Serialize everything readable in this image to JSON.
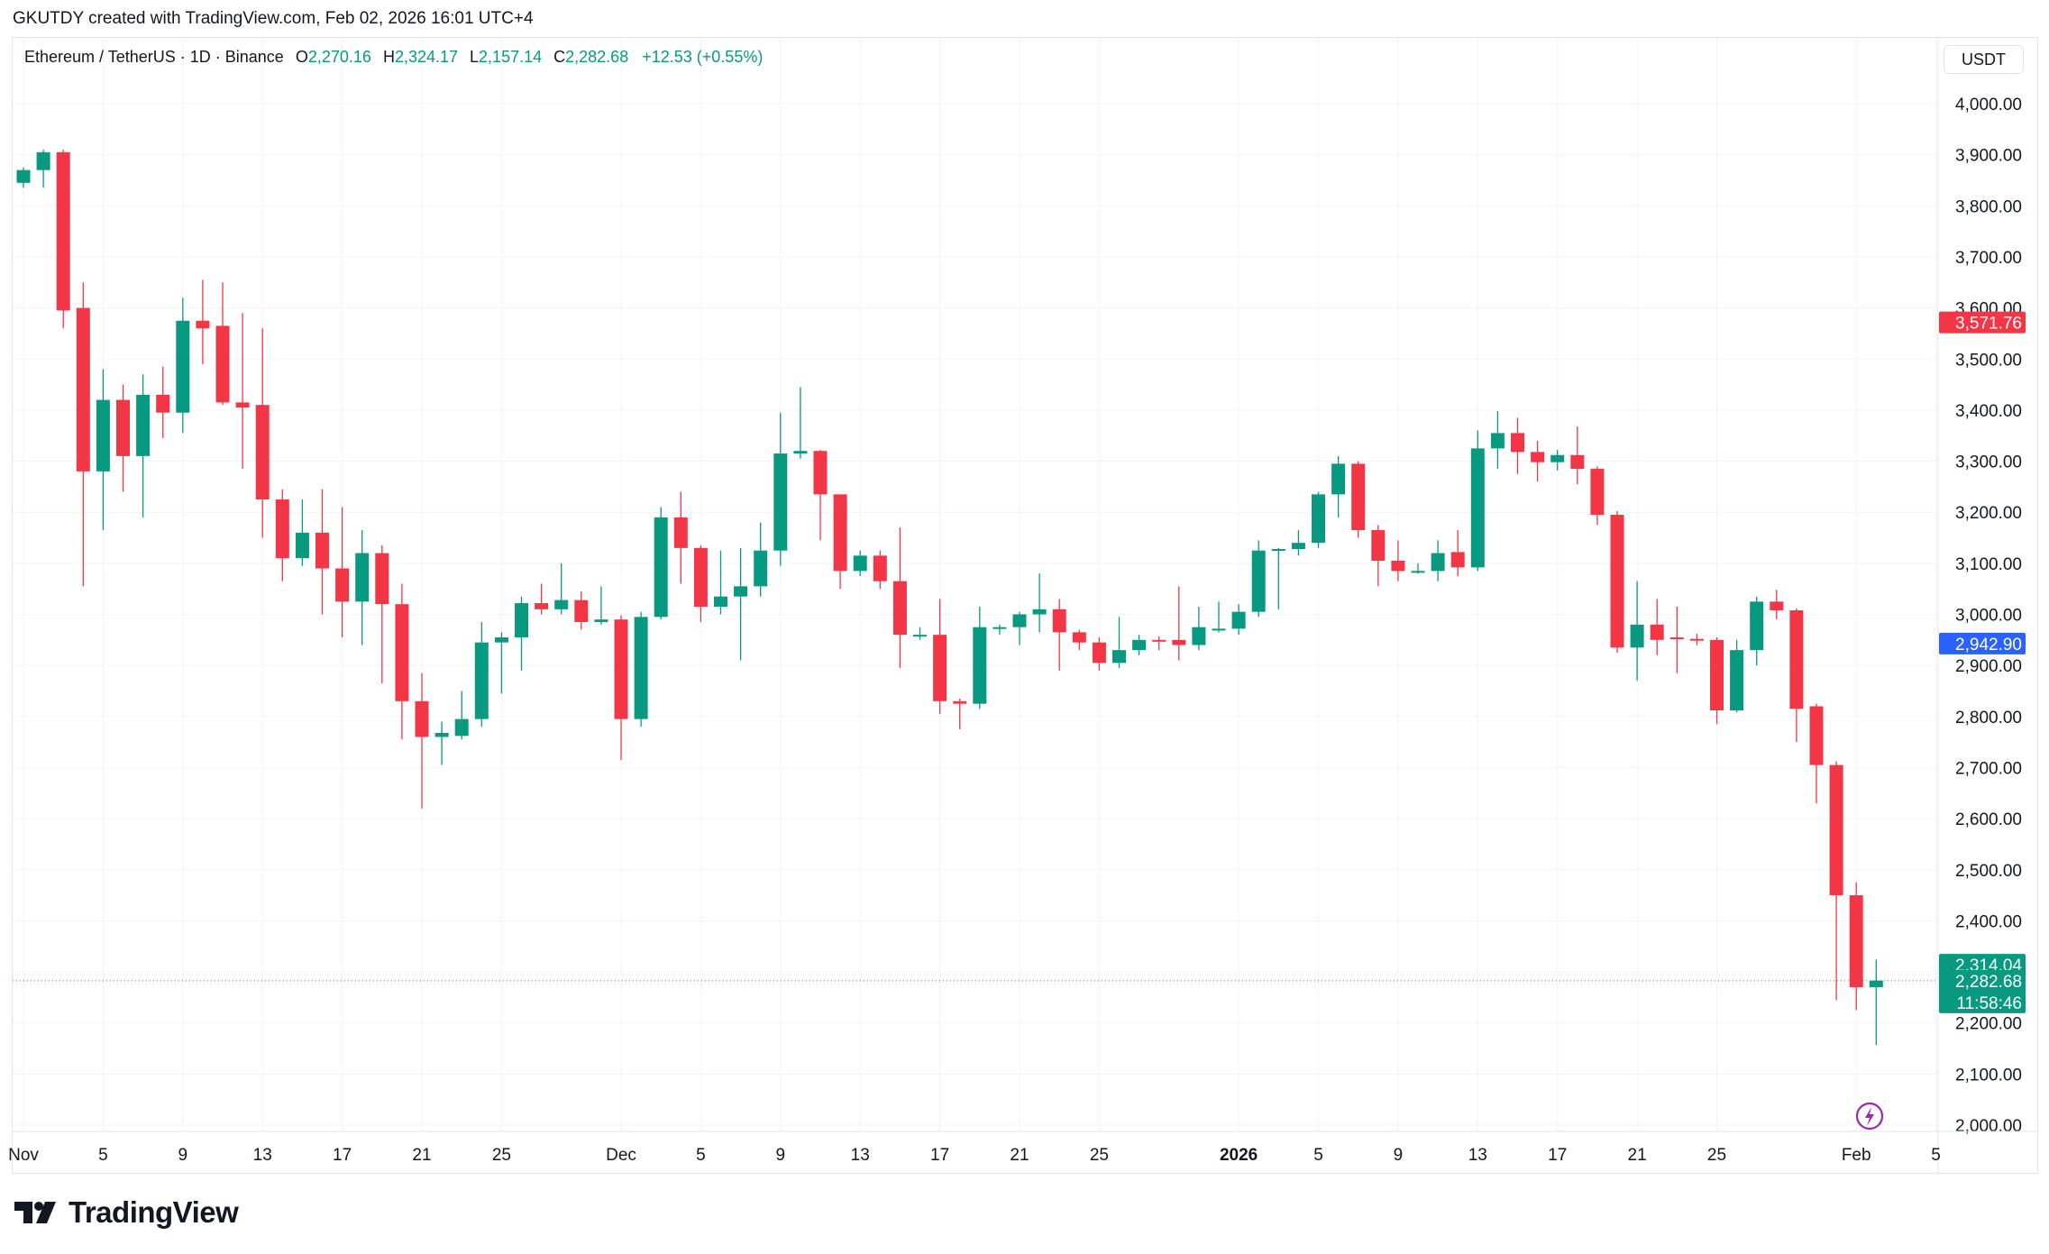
{
  "header": {
    "attribution": "GKUTDY created with TradingView.com, Feb 02, 2026 16:01 UTC+4"
  },
  "legend": {
    "symbol": "Ethereum / TetherUS · 1D · Binance",
    "open_label": "O",
    "open": "2,270.16",
    "high_label": "H",
    "high": "2,324.17",
    "low_label": "L",
    "low": "2,157.14",
    "close_label": "C",
    "close": "2,282.68",
    "change": "+12.53 (+0.55%)"
  },
  "currency": "USDT",
  "brand": {
    "name": "TradingView"
  },
  "colors": {
    "up": "#089981",
    "down": "#f23645",
    "grid": "#f0f3fa",
    "text": "#131722",
    "blue_tag": "#2962ff"
  },
  "chart_data": {
    "type": "candlestick",
    "title": "Ethereum / TetherUS · 1D · Binance",
    "ylim": [
      1970,
      4100
    ],
    "y_ticks": [
      {
        "v": 4000,
        "t": "4,000.00"
      },
      {
        "v": 3900,
        "t": "3,900.00"
      },
      {
        "v": 3800,
        "t": "3,800.00"
      },
      {
        "v": 3700,
        "t": "3,700.00"
      },
      {
        "v": 3600,
        "t": "3,600.00"
      },
      {
        "v": 3500,
        "t": "3,500.00"
      },
      {
        "v": 3400,
        "t": "3,400.00"
      },
      {
        "v": 3300,
        "t": "3,300.00"
      },
      {
        "v": 3200,
        "t": "3,200.00"
      },
      {
        "v": 3100,
        "t": "3,100.00"
      },
      {
        "v": 3000,
        "t": "3,000.00"
      },
      {
        "v": 2900,
        "t": "2,900.00"
      },
      {
        "v": 2800,
        "t": "2,800.00"
      },
      {
        "v": 2700,
        "t": "2,700.00"
      },
      {
        "v": 2600,
        "t": "2,600.00"
      },
      {
        "v": 2500,
        "t": "2,500.00"
      },
      {
        "v": 2400,
        "t": "2,400.00"
      },
      {
        "v": 2300,
        "t": "2,300.00"
      },
      {
        "v": 2200,
        "t": "2,200.00"
      },
      {
        "v": 2100,
        "t": "2,100.00"
      },
      {
        "v": 2000,
        "t": "2,000.00"
      }
    ],
    "x_ticks": [
      {
        "i": 0,
        "t": "Nov",
        "bold": false
      },
      {
        "i": 4,
        "t": "5",
        "bold": false
      },
      {
        "i": 8,
        "t": "9",
        "bold": false
      },
      {
        "i": 12,
        "t": "13",
        "bold": false
      },
      {
        "i": 16,
        "t": "17",
        "bold": false
      },
      {
        "i": 20,
        "t": "21",
        "bold": false
      },
      {
        "i": 24,
        "t": "25",
        "bold": false
      },
      {
        "i": 30,
        "t": "Dec",
        "bold": false
      },
      {
        "i": 34,
        "t": "5",
        "bold": false
      },
      {
        "i": 38,
        "t": "9",
        "bold": false
      },
      {
        "i": 42,
        "t": "13",
        "bold": false
      },
      {
        "i": 46,
        "t": "17",
        "bold": false
      },
      {
        "i": 50,
        "t": "21",
        "bold": false
      },
      {
        "i": 54,
        "t": "25",
        "bold": false
      },
      {
        "i": 61,
        "t": "2026",
        "bold": true
      },
      {
        "i": 65,
        "t": "5",
        "bold": false
      },
      {
        "i": 69,
        "t": "9",
        "bold": false
      },
      {
        "i": 73,
        "t": "13",
        "bold": false
      },
      {
        "i": 77,
        "t": "17",
        "bold": false
      },
      {
        "i": 81,
        "t": "21",
        "bold": false
      },
      {
        "i": 85,
        "t": "25",
        "bold": false
      },
      {
        "i": 92,
        "t": "Feb",
        "bold": false
      },
      {
        "i": 96,
        "t": "5",
        "bold": false
      }
    ],
    "candles": [
      {
        "o": 3845,
        "h": 3875,
        "l": 3835,
        "c": 3870
      },
      {
        "o": 3870,
        "h": 3910,
        "l": 3835,
        "c": 3905
      },
      {
        "o": 3905,
        "h": 3910,
        "l": 3560,
        "c": 3595
      },
      {
        "o": 3600,
        "h": 3650,
        "l": 3055,
        "c": 3280
      },
      {
        "o": 3280,
        "h": 3480,
        "l": 3165,
        "c": 3420
      },
      {
        "o": 3420,
        "h": 3450,
        "l": 3240,
        "c": 3310
      },
      {
        "o": 3310,
        "h": 3470,
        "l": 3190,
        "c": 3430
      },
      {
        "o": 3430,
        "h": 3485,
        "l": 3345,
        "c": 3395
      },
      {
        "o": 3395,
        "h": 3620,
        "l": 3355,
        "c": 3575
      },
      {
        "o": 3575,
        "h": 3655,
        "l": 3490,
        "c": 3560
      },
      {
        "o": 3565,
        "h": 3650,
        "l": 3410,
        "c": 3415
      },
      {
        "o": 3415,
        "h": 3590,
        "l": 3285,
        "c": 3405
      },
      {
        "o": 3410,
        "h": 3560,
        "l": 3150,
        "c": 3225
      },
      {
        "o": 3225,
        "h": 3245,
        "l": 3065,
        "c": 3110
      },
      {
        "o": 3110,
        "h": 3225,
        "l": 3095,
        "c": 3160
      },
      {
        "o": 3160,
        "h": 3245,
        "l": 3000,
        "c": 3090
      },
      {
        "o": 3090,
        "h": 3210,
        "l": 2955,
        "c": 3025
      },
      {
        "o": 3025,
        "h": 3165,
        "l": 2940,
        "c": 3120
      },
      {
        "o": 3120,
        "h": 3135,
        "l": 2865,
        "c": 3020
      },
      {
        "o": 3020,
        "h": 3060,
        "l": 2755,
        "c": 2830
      },
      {
        "o": 2830,
        "h": 2885,
        "l": 2620,
        "c": 2760
      },
      {
        "o": 2760,
        "h": 2790,
        "l": 2705,
        "c": 2768
      },
      {
        "o": 2762,
        "h": 2850,
        "l": 2755,
        "c": 2795
      },
      {
        "o": 2795,
        "h": 2985,
        "l": 2780,
        "c": 2945
      },
      {
        "o": 2945,
        "h": 2965,
        "l": 2845,
        "c": 2955
      },
      {
        "o": 2955,
        "h": 3035,
        "l": 2890,
        "c": 3022
      },
      {
        "o": 3022,
        "h": 3060,
        "l": 3000,
        "c": 3010
      },
      {
        "o": 3010,
        "h": 3100,
        "l": 3000,
        "c": 3028
      },
      {
        "o": 3028,
        "h": 3045,
        "l": 2970,
        "c": 2985
      },
      {
        "o": 2985,
        "h": 3055,
        "l": 2980,
        "c": 2990
      },
      {
        "o": 2990,
        "h": 2998,
        "l": 2715,
        "c": 2795
      },
      {
        "o": 2795,
        "h": 3005,
        "l": 2780,
        "c": 2995
      },
      {
        "o": 2995,
        "h": 3210,
        "l": 2990,
        "c": 3190
      },
      {
        "o": 3190,
        "h": 3240,
        "l": 3060,
        "c": 3130
      },
      {
        "o": 3130,
        "h": 3135,
        "l": 2985,
        "c": 3015
      },
      {
        "o": 3015,
        "h": 3125,
        "l": 3000,
        "c": 3035
      },
      {
        "o": 3035,
        "h": 3130,
        "l": 2910,
        "c": 3055
      },
      {
        "o": 3055,
        "h": 3180,
        "l": 3035,
        "c": 3125
      },
      {
        "o": 3125,
        "h": 3395,
        "l": 3095,
        "c": 3315
      },
      {
        "o": 3315,
        "h": 3445,
        "l": 3305,
        "c": 3320
      },
      {
        "o": 3320,
        "h": 3322,
        "l": 3145,
        "c": 3235
      },
      {
        "o": 3235,
        "h": 3235,
        "l": 3050,
        "c": 3085
      },
      {
        "o": 3085,
        "h": 3125,
        "l": 3075,
        "c": 3115
      },
      {
        "o": 3115,
        "h": 3125,
        "l": 3050,
        "c": 3065
      },
      {
        "o": 3065,
        "h": 3170,
        "l": 2895,
        "c": 2960
      },
      {
        "o": 2960,
        "h": 2975,
        "l": 2950,
        "c": 2960
      },
      {
        "o": 2960,
        "h": 3030,
        "l": 2805,
        "c": 2830
      },
      {
        "o": 2830,
        "h": 2835,
        "l": 2775,
        "c": 2825
      },
      {
        "o": 2825,
        "h": 3015,
        "l": 2815,
        "c": 2975
      },
      {
        "o": 2975,
        "h": 2980,
        "l": 2960,
        "c": 2975
      },
      {
        "o": 2975,
        "h": 3005,
        "l": 2940,
        "c": 3000
      },
      {
        "o": 3000,
        "h": 3080,
        "l": 2965,
        "c": 3010
      },
      {
        "o": 3010,
        "h": 3030,
        "l": 2890,
        "c": 2965
      },
      {
        "o": 2965,
        "h": 2970,
        "l": 2930,
        "c": 2945
      },
      {
        "o": 2945,
        "h": 2955,
        "l": 2890,
        "c": 2905
      },
      {
        "o": 2905,
        "h": 2995,
        "l": 2895,
        "c": 2930
      },
      {
        "o": 2930,
        "h": 2960,
        "l": 2920,
        "c": 2950
      },
      {
        "o": 2950,
        "h": 2957,
        "l": 2930,
        "c": 2948
      },
      {
        "o": 2950,
        "h": 3055,
        "l": 2910,
        "c": 2940
      },
      {
        "o": 2940,
        "h": 3015,
        "l": 2930,
        "c": 2975
      },
      {
        "o": 2970,
        "h": 3025,
        "l": 2965,
        "c": 2972
      },
      {
        "o": 2972,
        "h": 3020,
        "l": 2960,
        "c": 3005
      },
      {
        "o": 3005,
        "h": 3145,
        "l": 2995,
        "c": 3125
      },
      {
        "o": 3125,
        "h": 3130,
        "l": 3010,
        "c": 3128
      },
      {
        "o": 3128,
        "h": 3165,
        "l": 3115,
        "c": 3140
      },
      {
        "o": 3140,
        "h": 3240,
        "l": 3130,
        "c": 3235
      },
      {
        "o": 3235,
        "h": 3310,
        "l": 3190,
        "c": 3295
      },
      {
        "o": 3295,
        "h": 3300,
        "l": 3150,
        "c": 3165
      },
      {
        "o": 3165,
        "h": 3175,
        "l": 3055,
        "c": 3105
      },
      {
        "o": 3105,
        "h": 3145,
        "l": 3065,
        "c": 3085
      },
      {
        "o": 3085,
        "h": 3100,
        "l": 3080,
        "c": 3085
      },
      {
        "o": 3085,
        "h": 3145,
        "l": 3065,
        "c": 3120
      },
      {
        "o": 3122,
        "h": 3165,
        "l": 3075,
        "c": 3092
      },
      {
        "o": 3092,
        "h": 3360,
        "l": 3085,
        "c": 3325
      },
      {
        "o": 3325,
        "h": 3398,
        "l": 3285,
        "c": 3355
      },
      {
        "o": 3355,
        "h": 3385,
        "l": 3275,
        "c": 3318
      },
      {
        "o": 3318,
        "h": 3340,
        "l": 3260,
        "c": 3298
      },
      {
        "o": 3298,
        "h": 3322,
        "l": 3282,
        "c": 3312
      },
      {
        "o": 3312,
        "h": 3368,
        "l": 3255,
        "c": 3285
      },
      {
        "o": 3285,
        "h": 3290,
        "l": 3175,
        "c": 3195
      },
      {
        "o": 3195,
        "h": 3202,
        "l": 2925,
        "c": 2935
      },
      {
        "o": 2935,
        "h": 3065,
        "l": 2870,
        "c": 2980
      },
      {
        "o": 2980,
        "h": 3030,
        "l": 2920,
        "c": 2950
      },
      {
        "o": 2955,
        "h": 3015,
        "l": 2885,
        "c": 2952
      },
      {
        "o": 2952,
        "h": 2962,
        "l": 2940,
        "c": 2950
      },
      {
        "o": 2950,
        "h": 2955,
        "l": 2785,
        "c": 2812
      },
      {
        "o": 2812,
        "h": 2950,
        "l": 2808,
        "c": 2930
      },
      {
        "o": 2930,
        "h": 3035,
        "l": 2900,
        "c": 3025
      },
      {
        "o": 3025,
        "h": 3048,
        "l": 2990,
        "c": 3008
      },
      {
        "o": 3008,
        "h": 3012,
        "l": 2750,
        "c": 2815
      },
      {
        "o": 2820,
        "h": 2825,
        "l": 2630,
        "c": 2705
      },
      {
        "o": 2705,
        "h": 2712,
        "l": 2245,
        "c": 2450
      },
      {
        "o": 2450,
        "h": 2475,
        "l": 2225,
        "c": 2270
      },
      {
        "o": 2270,
        "h": 2324,
        "l": 2157,
        "c": 2283
      }
    ],
    "price_tags": [
      {
        "v": 3571.76,
        "t": "3,571.76",
        "color": "#f23645"
      },
      {
        "v": 2942.9,
        "t": "2,942.90",
        "color": "#2962ff"
      },
      {
        "v": 2314.04,
        "t": "2,314.04",
        "color": "#089981"
      }
    ],
    "last_price": {
      "v": 2282.68,
      "t": "2,282.68",
      "countdown": "11:58:46",
      "color": "#089981"
    }
  }
}
